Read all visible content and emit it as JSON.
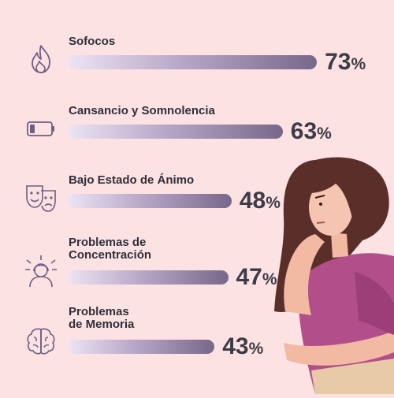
{
  "chart_data": {
    "type": "bar",
    "orientation": "horizontal",
    "categories": [
      "Sofocos",
      "Cansancio y Somnolencia",
      "Bajo Estado de Ánimo",
      "Problemas de Concentración",
      "Problemas de Memoria"
    ],
    "category_lines": [
      [
        "Sofocos"
      ],
      [
        "Cansancio y Somnolencia"
      ],
      [
        "Bajo Estado de Ánimo"
      ],
      [
        "Problemas de",
        "Concentración"
      ],
      [
        "Problemas",
        "de Memoria"
      ]
    ],
    "values": [
      73,
      63,
      48,
      47,
      43
    ],
    "value_labels": [
      "73",
      "63",
      "48",
      "47",
      "43"
    ],
    "unit": "%",
    "icons": [
      "flame-icon",
      "low-battery-icon",
      "theater-masks-icon",
      "stressed-person-icon",
      "brain-icon"
    ],
    "xlim": [
      0,
      100
    ],
    "grid": false,
    "legend": "none",
    "colors": {
      "background": "#fde2e4",
      "bar_start": "#ece4f3",
      "bar_end": "#77688b",
      "text": "#2f2f3a",
      "icon_stroke": "#6e5f82"
    }
  }
}
